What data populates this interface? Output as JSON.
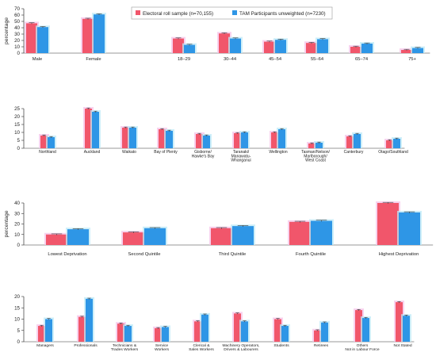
{
  "colors": {
    "electoral": "#f1566b",
    "electoral_halo": "#f6c3e8",
    "tam": "#2e96e6",
    "tam_halo": "#bdeaf7",
    "axis": "#333333"
  },
  "legend": {
    "electoral_label": "Electoral roll sample (n=70,155)",
    "tam_label": "TAM Participants unweighted (n=7230)"
  },
  "chart_data": [
    {
      "type": "bar",
      "title": "",
      "xlabel": "",
      "ylabel": "percentage",
      "ylim": [
        0,
        70
      ],
      "yticks": [
        0,
        10,
        20,
        30,
        40,
        50,
        60,
        70
      ],
      "grid": false,
      "categories": [
        "Male",
        "Female",
        "18–29",
        "30–44",
        "45–54",
        "55–64",
        "65–74",
        "75+"
      ],
      "series": [
        {
          "name": "Electoral roll sample (n=70,155)",
          "values": [
            47,
            54,
            23,
            31,
            18,
            16,
            10,
            5
          ]
        },
        {
          "name": "TAM Participants unweighted (n=7230)",
          "values": [
            41,
            61,
            13,
            23,
            21,
            22,
            15,
            8
          ]
        }
      ]
    },
    {
      "type": "bar",
      "title": "",
      "xlabel": "",
      "ylabel": "",
      "ylim": [
        0,
        25
      ],
      "yticks": [
        0,
        5,
        10,
        15,
        20,
        25
      ],
      "grid": false,
      "categories": [
        "Northland",
        "Auckland",
        "Waikato",
        "Bay of Plenty",
        "Gisborne/\nHawke's Bay",
        "Taranaki/\nManawatu-\nWhanganui",
        "Wellington",
        "Tasman/Nelson/\nMarlborough/\nWest Coast",
        "Canterbury",
        "Otago/Southland"
      ],
      "series": [
        {
          "name": "Electoral roll sample (n=70,155)",
          "values": [
            8,
            25,
            13,
            12,
            9,
            9.5,
            10,
            3,
            7.5,
            5
          ]
        },
        {
          "name": "TAM Participants unweighted (n=7230)",
          "values": [
            7,
            23,
            13,
            11,
            8,
            10,
            12,
            3.5,
            9,
            6
          ]
        }
      ]
    },
    {
      "type": "bar",
      "title": "",
      "xlabel": "",
      "ylabel": "percentage",
      "ylim": [
        0,
        40
      ],
      "yticks": [
        0,
        10,
        20,
        30,
        40
      ],
      "grid": false,
      "categories": [
        "Lowest Deprivation",
        "Second Quintile",
        "Third Quintile",
        "Fourth Quintile",
        "Highest Deprivation"
      ],
      "series": [
        {
          "name": "Electoral roll sample (n=70,155)",
          "values": [
            10,
            12,
            16,
            22,
            40
          ]
        },
        {
          "name": "TAM Participants unweighted (n=7230)",
          "values": [
            15,
            16,
            18,
            23,
            31
          ]
        }
      ]
    },
    {
      "type": "bar",
      "title": "",
      "xlabel": "",
      "ylabel": "",
      "ylim": [
        0,
        20
      ],
      "yticks": [
        0,
        5,
        10,
        15,
        20
      ],
      "grid": false,
      "categories": [
        "Managers",
        "Professionals",
        "Technicians &\nTrades Workers",
        "Service\nWorkers",
        "Clerical &\nSales Workers",
        "Machinery Operators,\nDrivers & Labourers",
        "Students",
        "Retirees",
        "Others\nNot in Labour Force",
        "Not Stated"
      ],
      "series": [
        {
          "name": "Electoral roll sample (n=70,155)",
          "values": [
            7,
            11,
            8,
            6,
            9,
            12.5,
            10,
            5,
            14,
            17.5
          ]
        },
        {
          "name": "TAM Participants unweighted (n=7230)",
          "values": [
            10,
            19,
            7,
            6.5,
            12,
            9,
            7,
            8.5,
            10.5,
            11.5
          ]
        }
      ]
    }
  ]
}
